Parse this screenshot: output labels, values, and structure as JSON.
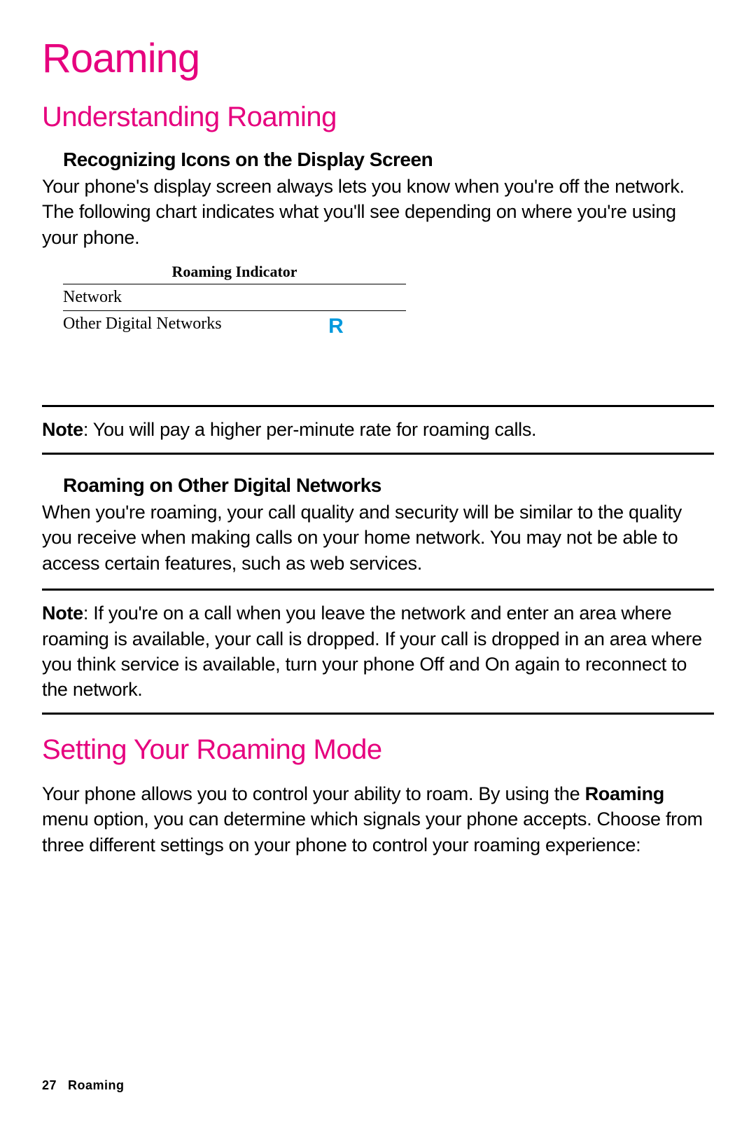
{
  "page": {
    "title": "Roaming",
    "footer_page": "27",
    "footer_section": "Roaming"
  },
  "colors": {
    "accent": "#e6007e",
    "roaming_icon": "#0099dd",
    "text": "#000000",
    "background": "#ffffff"
  },
  "section1": {
    "heading": "Understanding Roaming",
    "sub1": {
      "heading": "Recognizing Icons on the Display Screen",
      "body": "Your phone's display screen always lets you know when you're off the network. The following chart indicates what you'll see depending on where you're using your phone."
    },
    "table": {
      "header": "Roaming Indicator",
      "rows": [
        {
          "label": "Network",
          "icon": ""
        },
        {
          "label": "Other Digital Networks",
          "icon": "R"
        }
      ]
    },
    "note1": {
      "label": "Note",
      "text": ": You will pay a higher per-minute rate for roaming calls."
    },
    "sub2": {
      "heading": "Roaming on Other Digital Networks",
      "body": "When you're roaming, your call quality and security will be similar to the quality you receive when making calls on your home network. You may not be able to access certain features, such as web services."
    },
    "note2": {
      "label": "Note",
      "text": ": If you're on a call when you leave the network and enter an area where roaming is available, your call is dropped. If your call is dropped in an area where you think service is available, turn your phone Off and On again to reconnect to the network."
    }
  },
  "section2": {
    "heading": "Setting Your Roaming Mode",
    "body_pre": "Your phone allows you to control your ability to roam. By using the ",
    "body_bold": "Roaming",
    "body_post": " menu option, you can determine which signals your phone accepts. Choose from three different settings on your phone to control your roaming experience:"
  }
}
